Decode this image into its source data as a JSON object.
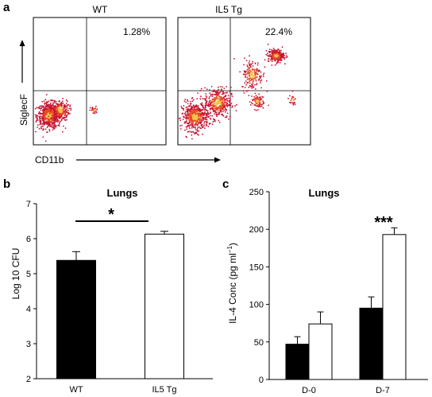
{
  "panel_labels": [
    "a",
    "b",
    "c"
  ],
  "chart_data": [
    {
      "type": "scatter",
      "panel": "a",
      "xlabel": "CD11b",
      "ylabel": "SiglecF",
      "plots": [
        {
          "title": "WT",
          "gate_label": "1.28%",
          "populations": [
            {
              "cx": 0.12,
              "cy": 0.23,
              "sx": 0.045,
              "sy": 0.05,
              "n": 620
            },
            {
              "cx": 0.2,
              "cy": 0.27,
              "sx": 0.035,
              "sy": 0.04,
              "n": 220
            },
            {
              "cx": 0.46,
              "cy": 0.27,
              "sx": 0.015,
              "sy": 0.015,
              "n": 30
            }
          ]
        },
        {
          "title": "IL5 Tg",
          "gate_label": "22.4%",
          "populations": [
            {
              "cx": 0.13,
              "cy": 0.22,
              "sx": 0.05,
              "sy": 0.055,
              "n": 520
            },
            {
              "cx": 0.3,
              "cy": 0.33,
              "sx": 0.05,
              "sy": 0.06,
              "n": 380
            },
            {
              "cx": 0.56,
              "cy": 0.55,
              "sx": 0.04,
              "sy": 0.06,
              "n": 180
            },
            {
              "cx": 0.74,
              "cy": 0.7,
              "sx": 0.03,
              "sy": 0.025,
              "n": 240
            },
            {
              "cx": 0.6,
              "cy": 0.34,
              "sx": 0.025,
              "sy": 0.03,
              "n": 90
            },
            {
              "cx": 0.86,
              "cy": 0.35,
              "sx": 0.015,
              "sy": 0.02,
              "n": 25
            }
          ]
        }
      ],
      "gate_x": 0.5,
      "gate_y": 0.44
    },
    {
      "type": "bar",
      "panel": "b",
      "title": "Lungs",
      "ylabel": "Log 10 CFU",
      "categories": [
        "WT",
        "IL5 Tg"
      ],
      "values": [
        5.38,
        6.13
      ],
      "errors": [
        0.25,
        0.08
      ],
      "fills": [
        "#000000",
        "#ffffff"
      ],
      "ylim": [
        2,
        7
      ],
      "yticks": [
        2,
        3,
        4,
        5,
        6,
        7
      ],
      "significance": "*"
    },
    {
      "type": "bar",
      "panel": "c",
      "title": "Lungs",
      "ylabel_main": "IL-4 Conc (pg ml",
      "ylabel_sup": "−1",
      "ylabel_close": ")",
      "categories": [
        "D-0",
        "D-7"
      ],
      "series": [
        {
          "values": [
            47,
            95
          ],
          "errors": [
            10,
            15
          ],
          "fill": "#000000"
        },
        {
          "values": [
            74,
            193
          ],
          "errors": [
            16,
            9
          ],
          "fill": "#ffffff"
        }
      ],
      "ylim": [
        0,
        250
      ],
      "yticks": [
        0,
        50,
        100,
        150,
        200,
        250
      ],
      "significance": "***"
    }
  ],
  "colors": {
    "dot_low": "#c8102e",
    "dot_mid": "#e8491d",
    "dot_high": "#f5c242"
  }
}
